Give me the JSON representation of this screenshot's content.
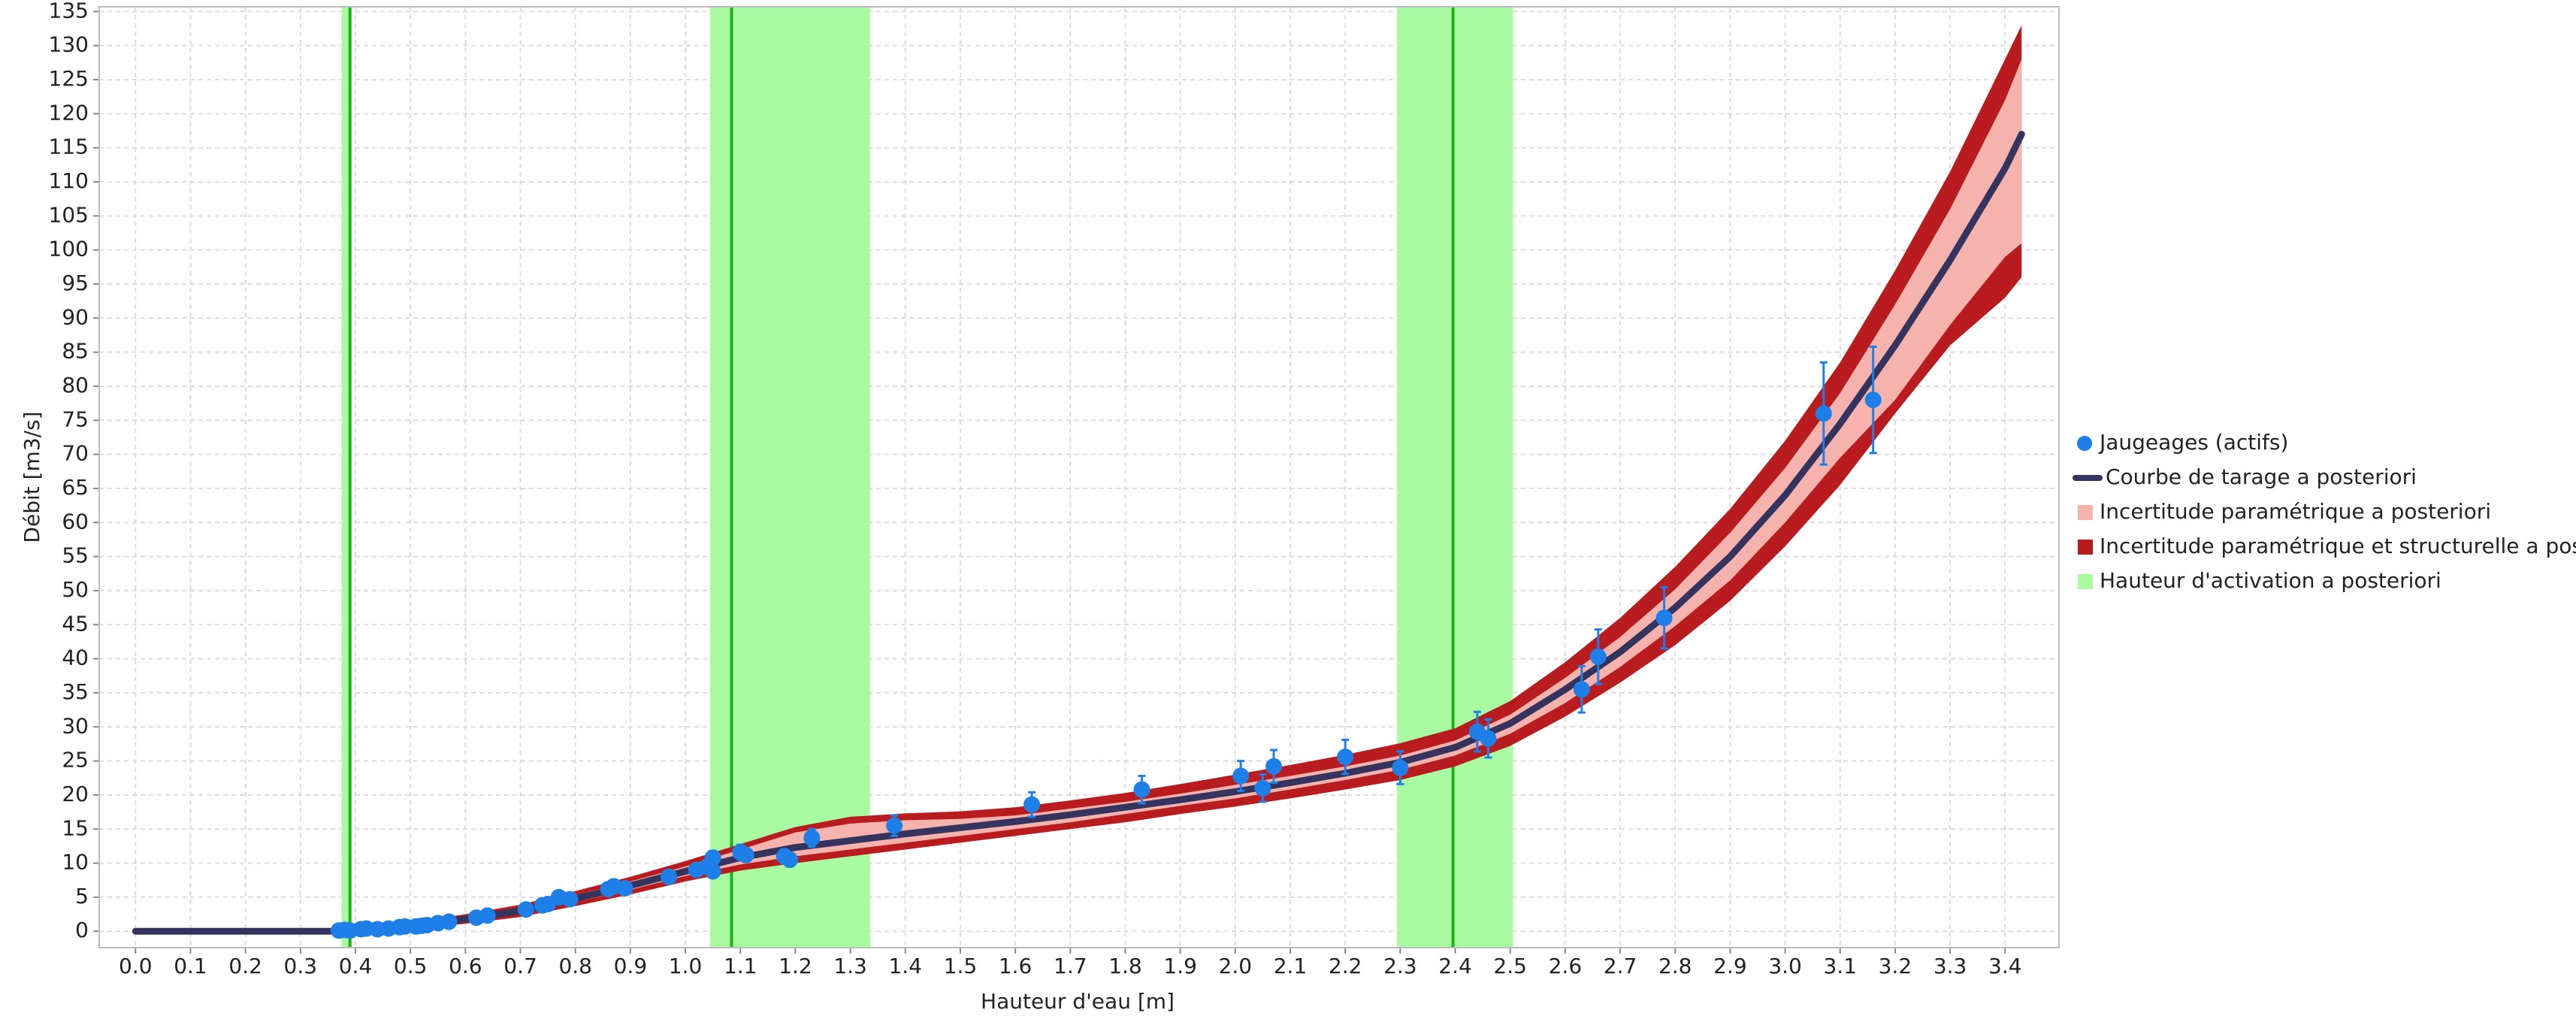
{
  "chart_data": {
    "type": "rating-curve",
    "xlabel": "Hauteur d'eau [m]",
    "ylabel": "Débit [m3/s]",
    "xlim": [
      -0.066,
      3.498
    ],
    "ylim": [
      -2.4,
      135.7
    ],
    "xticks": [
      {
        "value": 0,
        "label": "0.0"
      },
      0.1,
      0.2,
      0.3,
      0.4,
      0.5,
      0.6,
      0.7,
      0.8,
      0.9,
      {
        "value": 1,
        "label": "1.0"
      },
      1.1,
      1.2,
      1.3,
      1.4,
      1.5,
      1.6,
      1.7,
      1.8,
      1.9,
      {
        "value": 2,
        "label": "2.0"
      },
      2.1,
      2.2,
      2.3,
      2.4,
      2.5,
      2.6,
      2.7,
      2.8,
      2.9,
      {
        "value": 3,
        "label": "3.0"
      },
      3.1,
      3.2,
      3.3,
      3.4
    ],
    "yticks": [
      0,
      5,
      10,
      15,
      20,
      25,
      30,
      35,
      40,
      45,
      50,
      55,
      60,
      65,
      70,
      75,
      80,
      85,
      90,
      95,
      100,
      105,
      110,
      115,
      120,
      125,
      130,
      135
    ],
    "grid": true,
    "legend": "right",
    "series": [
      {
        "name": "Jaugeages (actifs)",
        "kind": "points",
        "color": "#1f7fe8",
        "x": [
          0.37,
          0.38,
          0.39,
          0.41,
          0.42,
          0.44,
          0.46,
          0.48,
          0.49,
          0.51,
          0.52,
          0.53,
          0.55,
          0.57,
          0.62,
          0.64,
          0.71,
          0.74,
          0.75,
          0.77,
          0.79,
          0.86,
          0.87,
          0.89,
          0.97,
          1.02,
          1.04,
          1.05,
          1.05,
          1.1,
          1.11,
          1.18,
          1.19,
          1.23,
          1.38,
          1.63,
          1.83,
          2.01,
          2.05,
          2.07,
          2.2,
          2.3,
          2.44,
          2.46,
          2.63,
          2.66,
          2.78,
          3.07,
          3.16
        ],
        "values": [
          0.1,
          0.2,
          0.1,
          0.3,
          0.4,
          0.3,
          0.4,
          0.6,
          0.7,
          0.7,
          0.8,
          0.9,
          1.2,
          1.4,
          2,
          2.3,
          3.2,
          3.8,
          4,
          5,
          4.7,
          6.2,
          6.6,
          6.3,
          8,
          9,
          9.5,
          10.8,
          8.8,
          11.6,
          11.2,
          11,
          10.5,
          13.7,
          15.5,
          18.6,
          20.8,
          22.8,
          21,
          24.2,
          25.6,
          24,
          29.3,
          28.3,
          35.5,
          40.3,
          46,
          76,
          78
        ],
        "errors": [
          0.1,
          0.1,
          0.1,
          0.1,
          0.1,
          0.1,
          0.1,
          0.1,
          0.1,
          0.1,
          0.1,
          0.1,
          0.2,
          0.2,
          0.3,
          0.3,
          0.4,
          0.5,
          0.5,
          0.6,
          0.5,
          0.7,
          0.7,
          0.7,
          0.8,
          0.9,
          0.9,
          1,
          0.9,
          1.1,
          1,
          1,
          1,
          1.3,
          1.5,
          1.8,
          2,
          2.2,
          2,
          2.4,
          2.5,
          2.4,
          2.9,
          2.8,
          3.4,
          4,
          4.5,
          7.5,
          7.8
        ]
      },
      {
        "name": "Courbe de tarage a posteriori",
        "kind": "line",
        "color": "#34345f",
        "x": [
          0,
          0.37,
          0.4,
          0.5,
          0.6,
          0.7,
          0.8,
          0.9,
          1.0,
          1.1,
          1.2,
          1.3,
          1.4,
          1.5,
          1.6,
          1.7,
          1.8,
          1.9,
          2.0,
          2.1,
          2.2,
          2.3,
          2.4,
          2.5,
          2.6,
          2.7,
          2.8,
          2.9,
          3.0,
          3.1,
          3.2,
          3.3,
          3.4,
          3.43
        ],
        "values": [
          0,
          0,
          0.3,
          0.8,
          1.8,
          3,
          4.8,
          6.7,
          8.8,
          10.8,
          12.3,
          13.3,
          14.3,
          15.2,
          16.1,
          17.1,
          18.2,
          19.3,
          20.5,
          21.8,
          23.2,
          24.8,
          27,
          30.5,
          35.5,
          41,
          47.5,
          55,
          64,
          74.5,
          86,
          98.5,
          112,
          117
        ]
      },
      {
        "name": "Incertitude paramétrique a posteriori",
        "kind": "band",
        "color": "#f6b2ac",
        "x": [
          0,
          0.37,
          0.4,
          0.5,
          0.6,
          0.7,
          0.8,
          0.9,
          1.0,
          1.1,
          1.2,
          1.3,
          1.4,
          1.5,
          1.6,
          1.7,
          1.8,
          1.9,
          2.0,
          2.1,
          2.2,
          2.3,
          2.4,
          2.5,
          2.6,
          2.7,
          2.8,
          2.9,
          3.0,
          3.1,
          3.2,
          3.3,
          3.4,
          3.43
        ],
        "lower": [
          0,
          0,
          0.2,
          0.6,
          1.5,
          2.6,
          4.3,
          6.1,
          8.1,
          9.8,
          11,
          12,
          13,
          14,
          15,
          16,
          17.2,
          18.4,
          19.5,
          20.8,
          22.2,
          23.7,
          25.8,
          29,
          33.5,
          38.8,
          44.8,
          51.5,
          60,
          69.5,
          78,
          89,
          99,
          101
        ],
        "upper": [
          0,
          0,
          0.4,
          1,
          2.1,
          3.4,
          5.3,
          7.3,
          9.5,
          12,
          14.5,
          15.8,
          16.3,
          16.5,
          17,
          18,
          19,
          20.2,
          21.5,
          22.8,
          24.2,
          25.8,
          28,
          31.8,
          37.2,
          43.2,
          50.2,
          58.5,
          68,
          79,
          92,
          106,
          122,
          128
        ]
      },
      {
        "name": "Incertitude paramétrique et structurelle a posteriori",
        "kind": "band",
        "color": "#b81c1f",
        "x": [
          0,
          0.37,
          0.4,
          0.5,
          0.6,
          0.7,
          0.8,
          0.9,
          1.0,
          1.1,
          1.2,
          1.3,
          1.4,
          1.5,
          1.6,
          1.7,
          1.8,
          1.9,
          2.0,
          2.1,
          2.2,
          2.3,
          2.4,
          2.5,
          2.6,
          2.7,
          2.8,
          2.9,
          3.0,
          3.1,
          3.2,
          3.3,
          3.4,
          3.43
        ],
        "lower": [
          0,
          0,
          0,
          0.3,
          1.1,
          2.1,
          3.7,
          5.4,
          7.3,
          8.9,
          10,
          11,
          12,
          13,
          14,
          15,
          16,
          17.2,
          18.3,
          19.5,
          20.8,
          22.2,
          24.2,
          27.2,
          31.5,
          36.5,
          42,
          48.5,
          56.5,
          65.5,
          76,
          86,
          93,
          96
        ],
        "upper": [
          0,
          0,
          0.6,
          1.3,
          2.5,
          3.9,
          5.9,
          8,
          10.3,
          12.8,
          15.3,
          16.8,
          17.3,
          17.6,
          18.2,
          19.2,
          20.3,
          21.6,
          23,
          24.4,
          25.9,
          27.6,
          29.8,
          33.8,
          39.5,
          46,
          53.5,
          62,
          72,
          83.5,
          97,
          111.5,
          128,
          133
        ]
      },
      {
        "name": "Hauteur d'activation a posteriori",
        "kind": "activation",
        "color": "#a9fba1",
        "line_color": "#1db21d",
        "values": [
          0.39,
          1.084,
          2.396
        ],
        "lower": [
          0.375,
          1.045,
          2.294
        ],
        "upper": [
          0.393,
          1.336,
          2.505
        ]
      }
    ]
  }
}
